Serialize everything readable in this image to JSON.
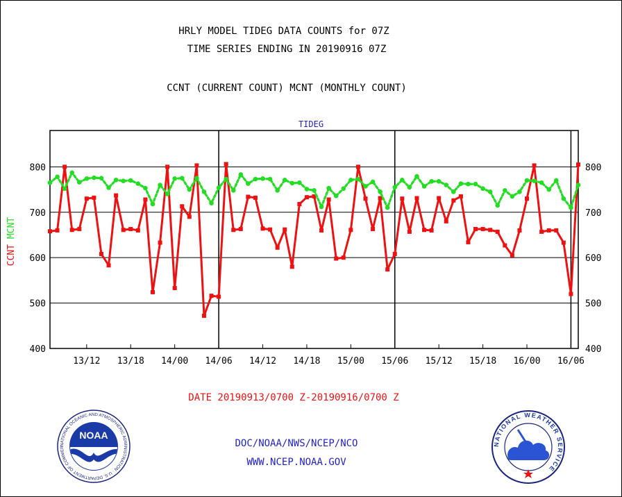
{
  "titles": {
    "line1": "HRLY MODEL TIDEG DATA COUNTS for 07Z",
    "line2": "TIME SERIES ENDING IN 20190916 07Z",
    "line3": "CCNT (CURRENT COUNT) MCNT (MONTHLY COUNT)",
    "panel": "TIDEG"
  },
  "date_range": "DATE 20190913/0700 Z-20190916/0700 Z",
  "footer": {
    "org": "DOC/NOAA/NWS/NCEP/NCO",
    "url": "WWW.NCEP.NOAA.GOV"
  },
  "logos": {
    "noaa": {
      "text": "NOAA",
      "ring_text": "NATIONAL OCEANIC AND ATMOSPHERIC ADMINISTRATION · U.S. DEPARTMENT OF COMMERCE"
    },
    "nws": {
      "ring_text": "NATIONAL WEATHER SERVICE"
    }
  },
  "colors": {
    "ccnt": "#ee1111",
    "mcnt": "#22dd22",
    "title": "#000000",
    "panel_title": "#2222cc",
    "date": "#ee1111",
    "footer": "#2222cc"
  },
  "chart_data": {
    "type": "line",
    "x_unit": "hour index from 13/07Z (0) to 16/07Z (72)",
    "xlim": [
      0,
      72
    ],
    "ylim": [
      400,
      880
    ],
    "y_ticks": [
      400,
      500,
      600,
      700,
      800
    ],
    "x_ticks": [
      {
        "label": "13/12",
        "x": 5
      },
      {
        "label": "13/18",
        "x": 11
      },
      {
        "label": "14/00",
        "x": 17
      },
      {
        "label": "14/06",
        "x": 23
      },
      {
        "label": "14/12",
        "x": 29
      },
      {
        "label": "14/18",
        "x": 35
      },
      {
        "label": "15/00",
        "x": 41
      },
      {
        "label": "15/06",
        "x": 47
      },
      {
        "label": "15/12",
        "x": 53
      },
      {
        "label": "15/18",
        "x": 59
      },
      {
        "label": "16/00",
        "x": 65
      },
      {
        "label": "16/06",
        "x": 71
      }
    ],
    "day_lines": [
      23,
      47,
      71
    ],
    "ylabel_left": [
      {
        "text": "CCNT",
        "color": "#ee1111"
      },
      {
        "text": "MCNT",
        "color": "#22dd22"
      }
    ],
    "grid": true,
    "series": [
      {
        "name": "CCNT",
        "color": "#ee1111",
        "style": "solid",
        "values": [
          658,
          660,
          800,
          661,
          663,
          730,
          732,
          608,
          583,
          737,
          661,
          663,
          660,
          728,
          524,
          633,
          800,
          533,
          713,
          690,
          803,
          472,
          516,
          514,
          806,
          661,
          663,
          734,
          732,
          664,
          662,
          622,
          662,
          580,
          718,
          733,
          735,
          660,
          728,
          598,
          600,
          661,
          800,
          730,
          663,
          731,
          574,
          608,
          730,
          657,
          731,
          661,
          660,
          731,
          680,
          726,
          735,
          634,
          663,
          663,
          661,
          657,
          627,
          605,
          660,
          730,
          803,
          657,
          660,
          660,
          633,
          520,
          805
        ]
      },
      {
        "name": "MCNT",
        "color": "#22dd22",
        "style": "dotted",
        "values": [
          765,
          778,
          752,
          787,
          766,
          774,
          776,
          775,
          754,
          771,
          769,
          770,
          763,
          753,
          718,
          760,
          740,
          774,
          775,
          750,
          775,
          745,
          720,
          754,
          773,
          748,
          783,
          763,
          773,
          774,
          773,
          748,
          771,
          764,
          765,
          751,
          748,
          712,
          753,
          736,
          752,
          771,
          773,
          757,
          767,
          745,
          710,
          755,
          771,
          755,
          779,
          757,
          768,
          768,
          760,
          745,
          763,
          762,
          762,
          752,
          745,
          715,
          748,
          735,
          745,
          770,
          769,
          765,
          750,
          770,
          730,
          710,
          760
        ]
      }
    ]
  }
}
